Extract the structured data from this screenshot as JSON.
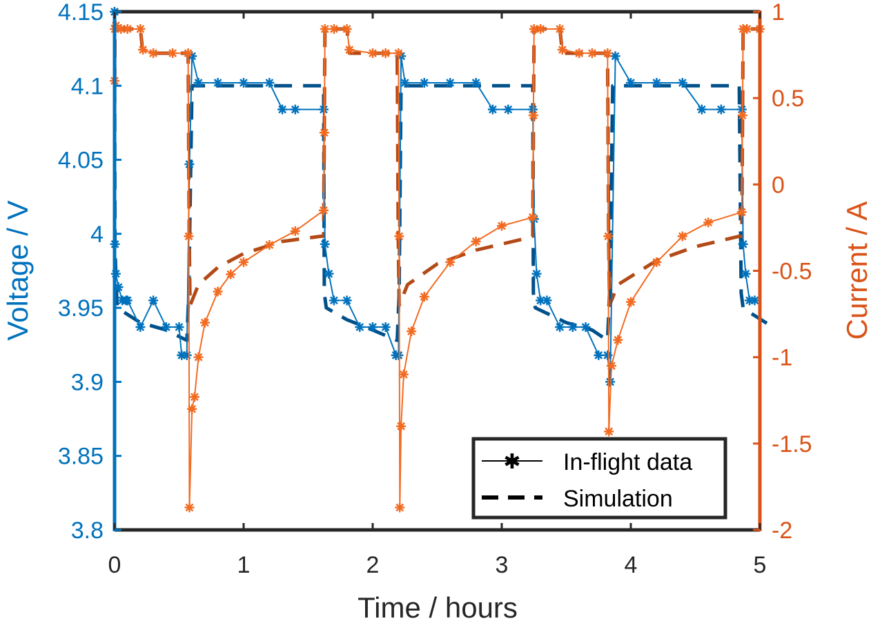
{
  "chart_data": {
    "type": "line",
    "title": "",
    "xlabel": "Time  /  hours",
    "ylabel_left": "Voltage  /  V",
    "ylabel_right": "Current  /  A",
    "xlim": [
      0,
      5
    ],
    "ylim_left": [
      3.8,
      4.15
    ],
    "ylim_right": [
      -2,
      1
    ],
    "xticks": [
      0,
      1,
      2,
      3,
      4,
      5
    ],
    "xtick_labels": [
      "0",
      "1",
      "2",
      "3",
      "4",
      "5"
    ],
    "yticks_left": [
      3.8,
      3.85,
      3.9,
      3.95,
      4.0,
      4.05,
      4.1,
      4.15
    ],
    "ytick_labels_left": [
      "3.8",
      "3.85",
      "3.9",
      "3.95",
      "4",
      "4.05",
      "4.1",
      "4.15"
    ],
    "yticks_right": [
      -2,
      -1.5,
      -1,
      -0.5,
      0,
      0.5,
      1
    ],
    "ytick_labels_right": [
      "-2",
      "-1.5",
      "-1",
      "-0.5",
      "0",
      "0.5",
      "1"
    ],
    "grid": false,
    "legend": {
      "position": "bottom-right",
      "entries": [
        {
          "label": "In-flight data",
          "style": "solid-star"
        },
        {
          "label": "Simulation",
          "style": "dashed"
        }
      ]
    },
    "colors": {
      "voltage_data": "#0072bd",
      "voltage_sim": "#00508a",
      "current_data": "#f26b21",
      "current_sim": "#b34a17",
      "legend_line": "#000000"
    },
    "series": [
      {
        "name": "Voltage in-flight data",
        "axis": "left",
        "style": "solid-star",
        "color_key": "voltage_data",
        "x": [
          0,
          0.003,
          0.01,
          0.03,
          0.06,
          0.09,
          0.1,
          0.2,
          0.3,
          0.4,
          0.5,
          0.52,
          0.56,
          0.58,
          0.6,
          0.65,
          0.8,
          1.0,
          1.2,
          1.3,
          1.4,
          1.62,
          1.63,
          1.66,
          1.7,
          1.8,
          1.9,
          2.0,
          2.1,
          2.18,
          2.2,
          2.22,
          2.25,
          2.4,
          2.6,
          2.8,
          2.93,
          3.05,
          3.24,
          3.25,
          3.27,
          3.3,
          3.35,
          3.45,
          3.55,
          3.65,
          3.75,
          3.82,
          3.84,
          3.88,
          4.0,
          4.2,
          4.4,
          4.55,
          4.7,
          4.86,
          4.87,
          4.89,
          4.92,
          4.96
        ],
        "y": [
          4.15,
          3.993,
          3.973,
          3.964,
          3.955,
          3.955,
          3.955,
          3.937,
          3.955,
          3.937,
          3.937,
          3.918,
          3.918,
          4.047,
          4.12,
          4.102,
          4.102,
          4.102,
          4.102,
          4.084,
          4.084,
          4.084,
          3.993,
          3.973,
          3.955,
          3.955,
          3.937,
          3.937,
          3.937,
          3.918,
          3.918,
          4.12,
          4.102,
          4.102,
          4.102,
          4.102,
          4.084,
          4.084,
          4.084,
          4.01,
          3.973,
          3.955,
          3.955,
          3.937,
          3.937,
          3.937,
          3.918,
          3.918,
          3.9,
          4.12,
          4.102,
          4.102,
          4.102,
          4.084,
          4.084,
          4.084,
          3.993,
          3.973,
          3.955,
          3.955
        ]
      },
      {
        "name": "Voltage simulation",
        "axis": "left",
        "style": "dashed",
        "color_key": "voltage_sim",
        "x": [
          0,
          0.003,
          0.02,
          0.2,
          0.4,
          0.56,
          0.575,
          0.6,
          0.65,
          1.0,
          1.5,
          1.62,
          1.625,
          1.64,
          1.8,
          2.0,
          2.19,
          2.205,
          2.22,
          2.3,
          2.8,
          3.2,
          3.24,
          3.245,
          3.26,
          3.5,
          3.7,
          3.82,
          3.835,
          3.86,
          3.9,
          4.4,
          4.84,
          4.855,
          4.87,
          4.9,
          5.1
        ],
        "y": [
          4.14,
          3.99,
          3.95,
          3.94,
          3.935,
          3.928,
          3.96,
          4.1,
          4.1,
          4.1,
          4.1,
          4.1,
          3.96,
          3.95,
          3.942,
          3.935,
          3.928,
          3.96,
          4.1,
          4.1,
          4.1,
          4.1,
          4.1,
          3.96,
          3.95,
          3.94,
          3.935,
          3.928,
          3.96,
          4.1,
          4.1,
          4.1,
          4.1,
          3.96,
          3.95,
          3.948,
          3.937
        ]
      },
      {
        "name": "Current in-flight data",
        "axis": "right",
        "style": "solid-star",
        "color_key": "current_data",
        "x": [
          0,
          0.002,
          0.01,
          0.05,
          0.1,
          0.2,
          0.22,
          0.3,
          0.45,
          0.57,
          0.575,
          0.58,
          0.6,
          0.62,
          0.65,
          0.7,
          0.8,
          0.9,
          1.0,
          1.2,
          1.4,
          1.62,
          1.625,
          1.63,
          1.7,
          1.8,
          1.82,
          2.0,
          2.1,
          2.2,
          2.205,
          2.21,
          2.22,
          2.24,
          2.3,
          2.4,
          2.6,
          2.8,
          3.0,
          3.24,
          3.245,
          3.25,
          3.3,
          3.45,
          3.47,
          3.6,
          3.7,
          3.82,
          3.825,
          3.83,
          3.85,
          3.9,
          4.0,
          4.2,
          4.4,
          4.6,
          4.86,
          4.865,
          4.87,
          4.9,
          5.0
        ],
        "y": [
          0.6,
          0.9,
          0.92,
          0.9,
          0.9,
          0.9,
          0.78,
          0.76,
          0.76,
          0.76,
          -0.3,
          -1.87,
          -1.3,
          -1.23,
          -1.0,
          -0.8,
          -0.62,
          -0.52,
          -0.45,
          -0.35,
          -0.27,
          -0.15,
          0.3,
          0.9,
          0.9,
          0.9,
          0.78,
          0.76,
          0.76,
          0.76,
          -0.3,
          -1.87,
          -1.4,
          -1.1,
          -0.85,
          -0.65,
          -0.45,
          -0.33,
          -0.24,
          -0.19,
          0.4,
          0.9,
          0.9,
          0.9,
          0.78,
          0.76,
          0.76,
          0.76,
          -0.3,
          -1.43,
          -1.05,
          -0.9,
          -0.68,
          -0.45,
          -0.3,
          -0.22,
          -0.16,
          0.4,
          0.9,
          0.9,
          0.9
        ]
      },
      {
        "name": "Current simulation",
        "axis": "right",
        "style": "dashed",
        "color_key": "current_sim",
        "x": [
          0,
          0.003,
          0.02,
          0.2,
          0.22,
          0.57,
          0.578,
          0.585,
          0.65,
          0.8,
          1.0,
          1.3,
          1.6,
          1.62,
          1.63,
          1.8,
          1.82,
          2.19,
          2.198,
          2.205,
          2.27,
          2.5,
          2.8,
          3.2,
          3.24,
          3.25,
          3.45,
          3.47,
          3.82,
          3.828,
          3.835,
          3.9,
          4.2,
          4.5,
          4.84,
          4.86,
          4.87,
          5.0
        ],
        "y": [
          0.4,
          0.9,
          0.9,
          0.9,
          0.76,
          0.76,
          -0.3,
          -0.7,
          -0.58,
          -0.48,
          -0.4,
          -0.33,
          -0.3,
          -0.3,
          0.9,
          0.9,
          0.76,
          0.76,
          -0.3,
          -0.7,
          -0.58,
          -0.46,
          -0.38,
          -0.31,
          -0.3,
          0.9,
          0.9,
          0.76,
          0.76,
          -0.3,
          -0.7,
          -0.58,
          -0.44,
          -0.36,
          -0.3,
          -0.3,
          0.9,
          0.9
        ]
      }
    ]
  }
}
